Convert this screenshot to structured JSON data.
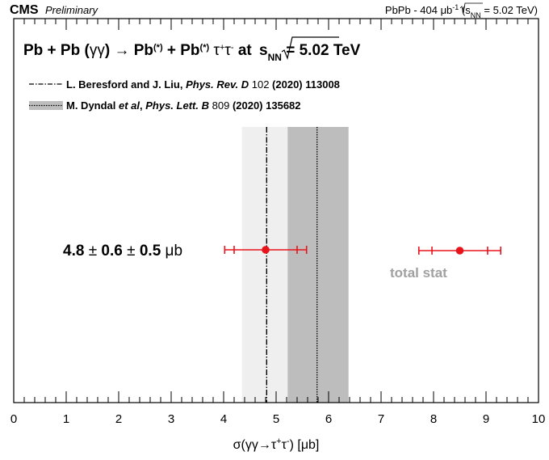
{
  "header": {
    "experiment": "CMS",
    "status": "Preliminary",
    "dataset_prefix": "PbPb - 404 ",
    "lumi_unit": "μb",
    "lumi_exp": "-1",
    "energy_open": " (",
    "energy_sqrt_s": "s",
    "energy_sub": "NN",
    "energy_close": " = 5.02 TeV)"
  },
  "process": {
    "p1": "Pb + Pb (",
    "p2": "γγ",
    "p3": ") ",
    "arrow": "→",
    "p4": " Pb",
    "sup1": "(*)",
    "p5": " + Pb",
    "sup2": "(*)",
    "p6": " ",
    "tau1": "τ",
    "plus": "+",
    "tau2": "τ",
    "minus": "-",
    "p7": " at ",
    "s": "s",
    "nn": "NN",
    "p8": " = 5.02 TeV"
  },
  "legend": [
    {
      "style": "dash-dot",
      "authors": "L. Beresford and J. Liu, ",
      "journal": "Phys. Rev. D",
      "volume": " 102 ",
      "rest": "(2020) 113008"
    },
    {
      "style": "band",
      "authors": "M. Dyndal ",
      "etal": "et al",
      "comma": ", ",
      "journal": "Phys. Lett. B",
      "volume": " 809 ",
      "rest": "(2020) 135682"
    }
  ],
  "measurement_label": {
    "v1": "4.8",
    "pm1": " ± ",
    "v2": "0.6",
    "pm2": " ± ",
    "v3": "0.5 ",
    "unit": "μb"
  },
  "demo_label": {
    "text": "total stat"
  },
  "axis": {
    "xlabel_pre": "σ(γγ→τ",
    "xlabel_plus": "+",
    "xlabel_mid": "τ",
    "xlabel_minus": "-",
    "xlabel_post": ") [μb]"
  },
  "colors": {
    "point": "#e8141c",
    "band_light": "#efefef",
    "band_dark": "#bdbdbd",
    "demo_label": "#a0a0a0"
  },
  "chart_data": {
    "type": "scatter",
    "xlim": [
      0,
      10
    ],
    "xticks": [
      0,
      1,
      2,
      3,
      4,
      5,
      6,
      7,
      8,
      9,
      10
    ],
    "measurement": {
      "value": 4.8,
      "stat": 0.6,
      "syst": 0.5,
      "total": 0.78,
      "unit": "μb"
    },
    "legend_key": {
      "value": 8.5,
      "total_low": 7.72,
      "total_high": 9.28,
      "stat_low": 7.97,
      "stat_high": 9.03
    },
    "theory_beresford": {
      "value": 4.82,
      "band": [
        4.35,
        5.33
      ]
    },
    "theory_dyndal": {
      "value": 5.78,
      "band": [
        5.22,
        6.38
      ]
    }
  }
}
